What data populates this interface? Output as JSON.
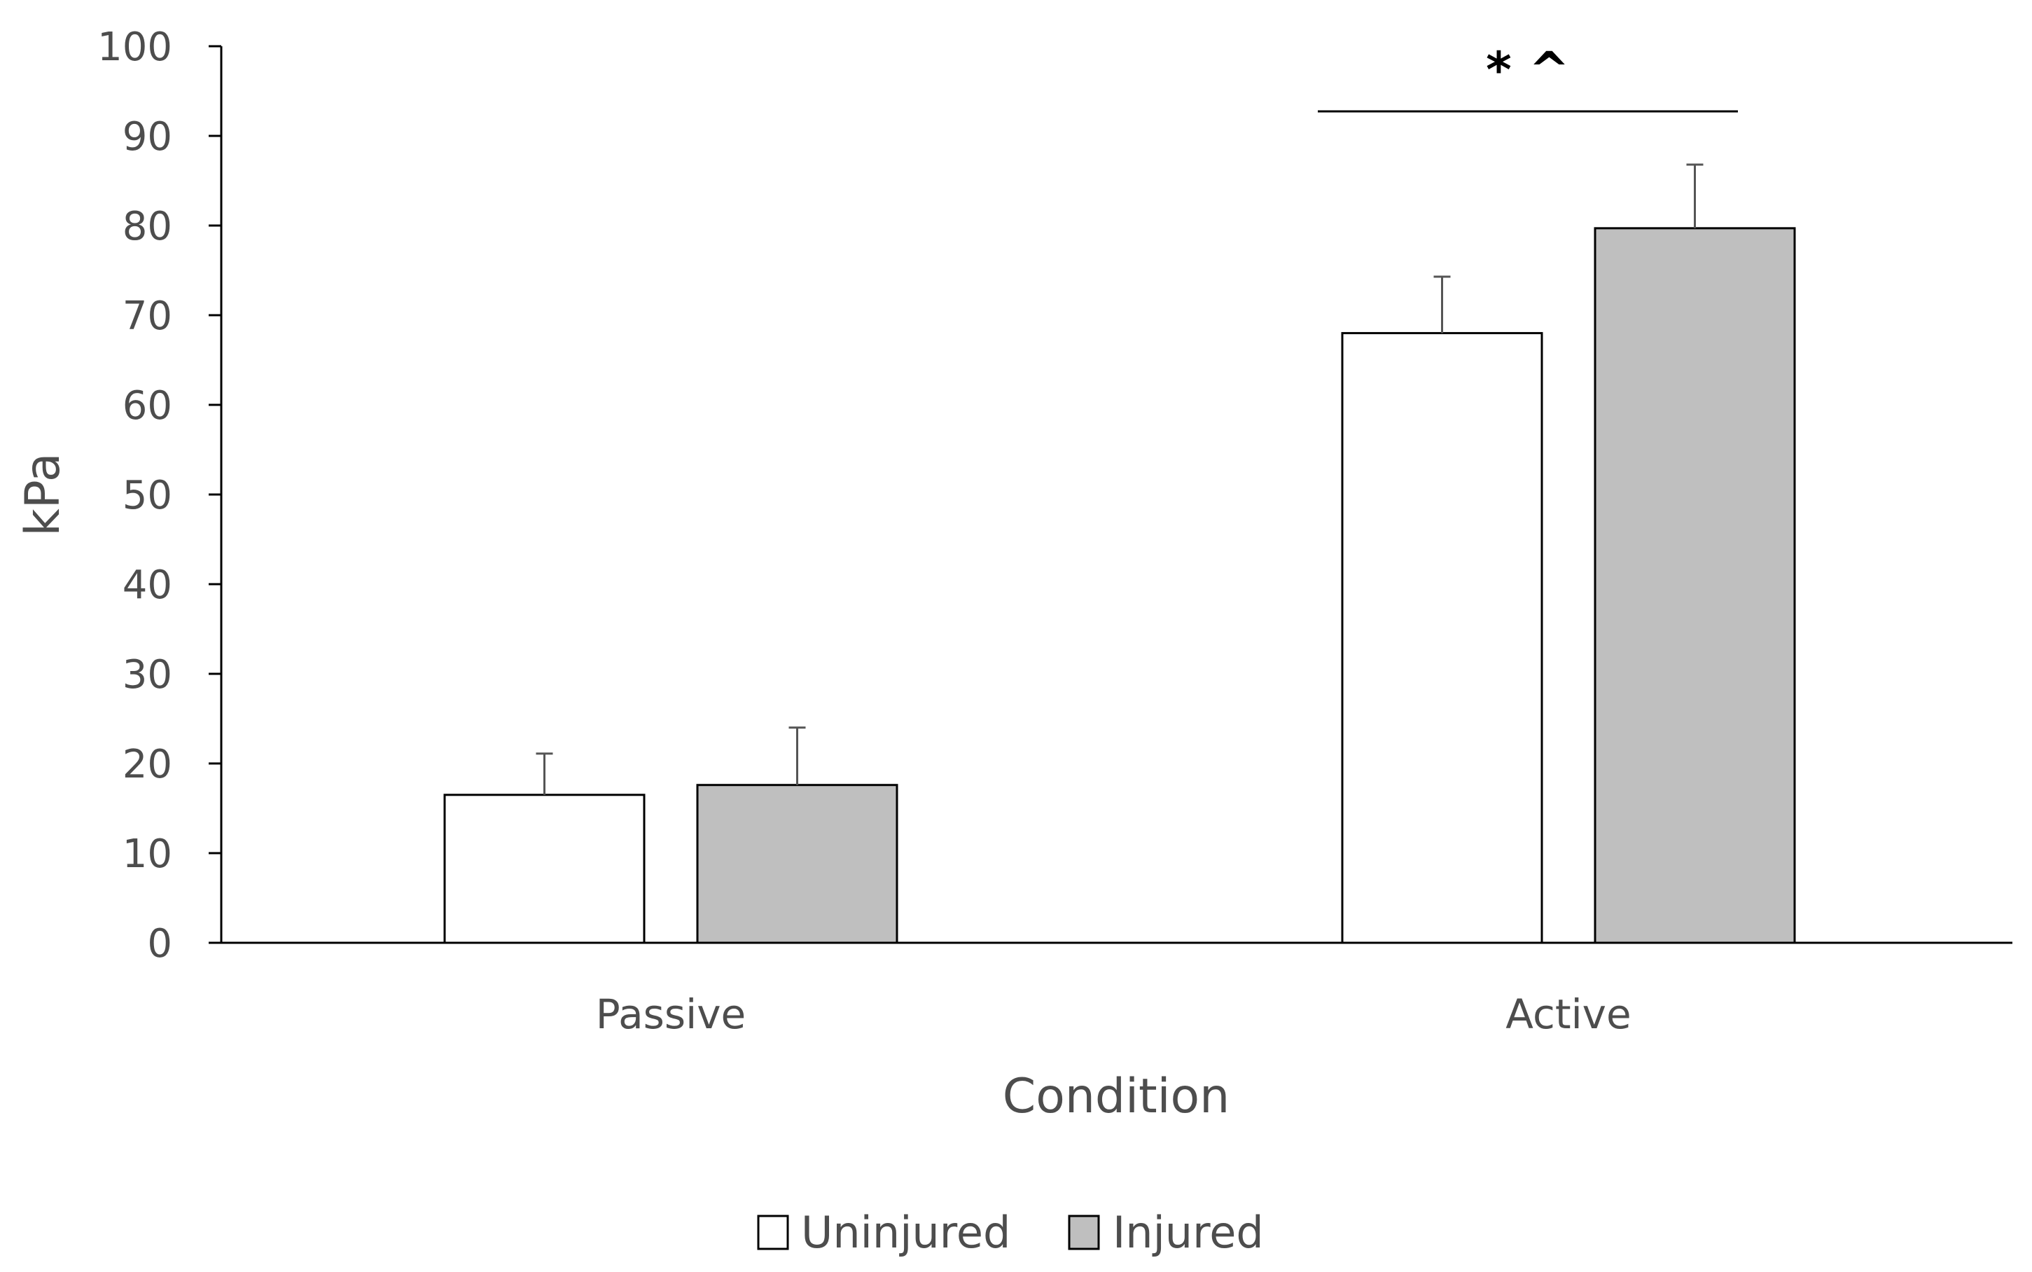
{
  "chart_data": {
    "type": "bar",
    "title": "",
    "xlabel": "Condition",
    "ylabel": "kPa",
    "ylim": [
      0,
      100
    ],
    "yticks": [
      "0",
      "10",
      "20",
      "30",
      "40",
      "50",
      "60",
      "70",
      "80",
      "90",
      "100"
    ],
    "categories": [
      "Passive",
      "Active"
    ],
    "series": [
      {
        "name": "Uninjured",
        "color": "#ffffff",
        "values": [
          16.5,
          68
        ],
        "errors": [
          4.6,
          6.3
        ]
      },
      {
        "name": "Injured",
        "color": "#bfbfbf",
        "values": [
          17.6,
          79.7
        ],
        "errors": [
          6.4,
          7.1
        ]
      }
    ],
    "annotations": [
      {
        "text": "* ^",
        "category": "Active"
      }
    ],
    "legend": "bottom",
    "grid": false
  }
}
